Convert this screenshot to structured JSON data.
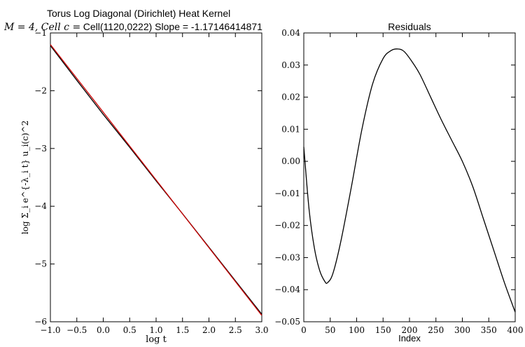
{
  "figure": {
    "title_line1": "Torus Log Diagonal (Dirichlet) Heat Kernel",
    "title_line2_prefix": "M = 4, Cell c =",
    "title_line2_rest": "Cell(1120,0222) Slope = -1.17146414871"
  },
  "chart_data": [
    {
      "type": "line",
      "title": "",
      "xlabel": "log t",
      "ylabel": "log Σ_i e^{-λ_i t} u_i(c)^2",
      "xlim": [
        -1.0,
        3.0
      ],
      "ylim": [
        -6,
        -1
      ],
      "xticks": [
        "−1.0",
        "−0.5",
        "0.0",
        "0.5",
        "1.0",
        "1.5",
        "2.0",
        "2.5",
        "3.0"
      ],
      "yticks": [
        "−1",
        "−2",
        "−3",
        "−4",
        "−5",
        "−6"
      ],
      "grid": false,
      "series": [
        {
          "color": "#000000",
          "x": [
            -1.0,
            -0.5,
            0.0,
            0.5,
            1.0,
            1.5,
            2.0,
            2.5,
            3.0
          ],
          "y": [
            -1.22,
            -1.82,
            -2.41,
            -2.98,
            -3.56,
            -4.13,
            -4.71,
            -5.29,
            -5.87
          ]
        },
        {
          "color": "#cc0000",
          "x": [
            -1.0,
            3.0
          ],
          "y": [
            -1.2,
            -5.89
          ]
        }
      ]
    },
    {
      "type": "line",
      "title": "Residuals",
      "xlabel": "Index",
      "ylabel": "",
      "xlim": [
        0,
        400
      ],
      "ylim": [
        -0.05,
        0.04
      ],
      "xticks": [
        "0",
        "50",
        "100",
        "150",
        "200",
        "250",
        "300",
        "350",
        "400"
      ],
      "yticks": [
        "0.04",
        "0.03",
        "0.02",
        "0.01",
        "0.00",
        "−0.01",
        "−0.02",
        "−0.03",
        "−0.04",
        "−0.05"
      ],
      "grid": false,
      "series": [
        {
          "color": "#000000",
          "x": [
            0,
            10,
            20,
            30,
            40,
            45,
            55,
            70,
            90,
            110,
            130,
            150,
            165,
            178,
            190,
            205,
            220,
            240,
            260,
            280,
            300,
            320,
            340,
            360,
            380,
            400
          ],
          "y": [
            0.0045,
            -0.015,
            -0.027,
            -0.034,
            -0.0375,
            -0.0378,
            -0.035,
            -0.025,
            -0.008,
            0.01,
            0.024,
            0.032,
            0.0345,
            0.035,
            0.0342,
            0.031,
            0.027,
            0.02,
            0.013,
            0.0065,
            0.0,
            -0.008,
            -0.018,
            -0.028,
            -0.038,
            -0.047
          ]
        }
      ]
    }
  ]
}
